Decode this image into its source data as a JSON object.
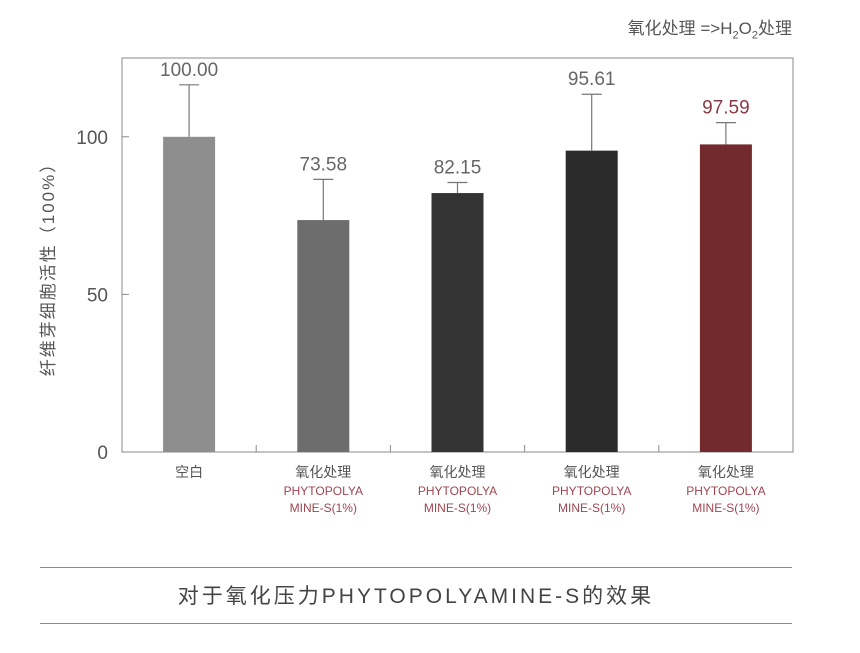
{
  "legend_note": {
    "prefix": "氧化处理 =>H",
    "sub1": "2",
    "mid": "O",
    "sub2": "2",
    "suffix": "处理"
  },
  "footer": {
    "title": "对于氧化压力PHYTOPOLYAMINE-S的效果"
  },
  "colors": {
    "axis": "#8a8a8a",
    "text": "#555555",
    "accent": "#a0454f"
  },
  "chart_data": {
    "type": "bar",
    "ylabel": "纤维芽细胞活性（100%）",
    "ylim": [
      0,
      125
    ],
    "yticks": [
      0,
      50,
      100
    ],
    "grid": false,
    "categories": [
      {
        "line1": "空白",
        "line2": "",
        "line3": ""
      },
      {
        "line1": "氧化处理",
        "line2": "PHYTOPOLYA",
        "line3": "MINE-S(1%)"
      },
      {
        "line1": "氧化处理",
        "line2": "PHYTOPOLYA",
        "line3": "MINE-S(1%)"
      },
      {
        "line1": "氧化处理",
        "line2": "PHYTOPOLYA",
        "line3": "MINE-S(1%)"
      },
      {
        "line1": "氧化处理",
        "line2": "PHYTOPOLYA",
        "line3": "MINE-S(1%)"
      }
    ],
    "values": [
      100.0,
      73.58,
      82.15,
      95.61,
      97.59
    ],
    "value_labels": [
      "100.00",
      "73.58",
      "82.15",
      "95.61",
      "97.59"
    ],
    "error_upper": [
      116.5,
      86.5,
      85.5,
      113.5,
      104.5
    ],
    "bar_colors": [
      "#8e8e8e",
      "#6d6d6d",
      "#333333",
      "#2b2b2b",
      "#722a2c"
    ],
    "label_colors": [
      "#666666",
      "#666666",
      "#666666",
      "#666666",
      "#8a3a45"
    ]
  }
}
